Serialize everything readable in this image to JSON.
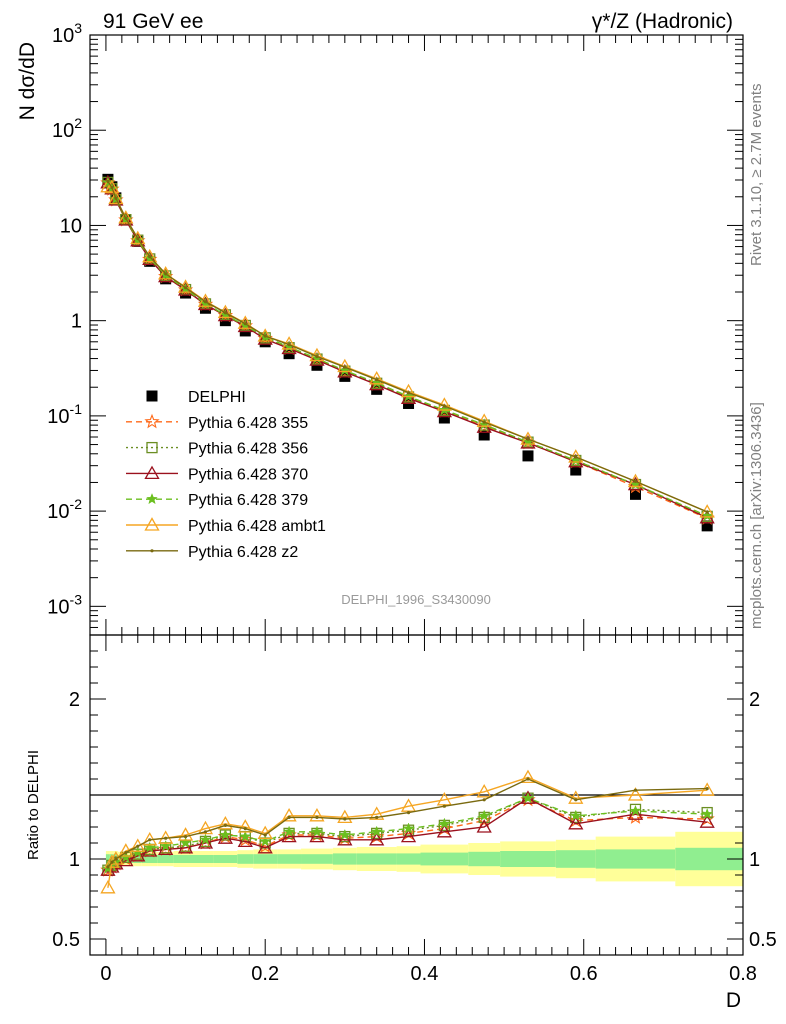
{
  "header": {
    "left": "91 GeV ee",
    "right": "γ*/Z (Hadronic)"
  },
  "side_labels": {
    "rivet": "Rivet 3.1.10, ≥ 2.7M events",
    "mcplots": "mcplots.cern.ch [arXiv:1306.3436]"
  },
  "analysis_label": "DELPHI_1996_S3430090",
  "chart_data": [
    {
      "type": "scatter",
      "ylabel": "N dσ/dD",
      "yscale": "log",
      "ylim": [
        0.0005,
        1000
      ],
      "xlim": [
        -0.02,
        0.8
      ],
      "y_tick_labels": [
        "10^3",
        "10^2",
        "10",
        "1",
        "10^-1",
        "10^-2",
        "10^-3"
      ],
      "x": [
        0.0025,
        0.0075,
        0.0125,
        0.025,
        0.04,
        0.055,
        0.075,
        0.1,
        0.125,
        0.15,
        0.175,
        0.2,
        0.23,
        0.265,
        0.3,
        0.34,
        0.38,
        0.425,
        0.475,
        0.53,
        0.59,
        0.665,
        0.755
      ],
      "series": [
        {
          "name": "DELPHI",
          "color": "#000000",
          "marker": "square",
          "values": [
            30.5,
            25.5,
            19.5,
            11.5,
            6.8,
            4.2,
            2.75,
            1.95,
            1.35,
            1.0,
            0.78,
            0.6,
            0.45,
            0.34,
            0.26,
            0.19,
            0.135,
            0.095,
            0.063,
            0.038,
            0.027,
            0.015,
            0.007
          ]
        },
        {
          "name": "Pythia 6.428 355",
          "color": "#ff6a1a",
          "marker": "star-open",
          "line": "dashed",
          "values": [
            28.0,
            24.0,
            18.5,
            11.4,
            6.9,
            4.4,
            2.9,
            2.1,
            1.48,
            1.13,
            0.88,
            0.65,
            0.51,
            0.39,
            0.29,
            0.215,
            0.155,
            0.112,
            0.078,
            0.052,
            0.033,
            0.018,
            0.0084
          ]
        },
        {
          "name": "Pythia 6.428 356",
          "color": "#6b8e23",
          "marker": "square-open",
          "line": "dotted",
          "values": [
            28.3,
            24.3,
            18.7,
            11.5,
            7.0,
            4.45,
            2.95,
            2.12,
            1.5,
            1.15,
            0.89,
            0.66,
            0.52,
            0.395,
            0.295,
            0.22,
            0.158,
            0.114,
            0.08,
            0.053,
            0.034,
            0.019,
            0.0088
          ]
        },
        {
          "name": "Pythia 6.428 370",
          "color": "#9b111e",
          "marker": "triangle-open",
          "line": "solid",
          "values": [
            28.0,
            24.2,
            18.5,
            11.4,
            6.9,
            4.4,
            2.9,
            2.1,
            1.48,
            1.13,
            0.87,
            0.64,
            0.51,
            0.385,
            0.29,
            0.213,
            0.153,
            0.111,
            0.076,
            0.052,
            0.033,
            0.019,
            0.0085
          ]
        },
        {
          "name": "Pythia 6.428 379",
          "color": "#6bbf1f",
          "marker": "star",
          "line": "dashed",
          "values": [
            28.2,
            24.3,
            18.8,
            11.6,
            7.0,
            4.5,
            3.0,
            2.15,
            1.5,
            1.15,
            0.89,
            0.67,
            0.53,
            0.4,
            0.3,
            0.222,
            0.16,
            0.115,
            0.081,
            0.053,
            0.034,
            0.019,
            0.0089
          ]
        },
        {
          "name": "Pythia 6.428 ambt1",
          "color": "#f5a623",
          "marker": "triangle-open",
          "line": "solid",
          "values": [
            25.5,
            25.0,
            19.2,
            12.0,
            7.3,
            4.7,
            3.1,
            2.25,
            1.6,
            1.22,
            0.94,
            0.69,
            0.57,
            0.43,
            0.33,
            0.245,
            0.18,
            0.13,
            0.088,
            0.057,
            0.037,
            0.0205,
            0.0098
          ]
        },
        {
          "name": "Pythia 6.428 z2",
          "color": "#7a6a10",
          "marker": "dot",
          "line": "solid",
          "values": [
            29.0,
            25.0,
            19.3,
            11.9,
            7.3,
            4.7,
            3.1,
            2.22,
            1.58,
            1.21,
            0.93,
            0.69,
            0.56,
            0.42,
            0.325,
            0.24,
            0.175,
            0.127,
            0.086,
            0.057,
            0.037,
            0.0205,
            0.0098
          ]
        }
      ]
    },
    {
      "type": "line",
      "ylabel": "Ratio to DELPHI",
      "xlabel": "D",
      "ylim": [
        0.4,
        2.4
      ],
      "xlim": [
        -0.02,
        0.8
      ],
      "x_ticks": [
        0,
        0.2,
        0.4,
        0.6,
        0.8
      ],
      "y_ticks": [
        0.5,
        1,
        2
      ],
      "x": [
        0.0025,
        0.0075,
        0.0125,
        0.025,
        0.04,
        0.055,
        0.075,
        0.1,
        0.125,
        0.15,
        0.175,
        0.2,
        0.23,
        0.265,
        0.3,
        0.34,
        0.38,
        0.425,
        0.475,
        0.53,
        0.59,
        0.665,
        0.755
      ],
      "uncertainty_bands": {
        "bin_edges": [
          0,
          0.005,
          0.01,
          0.015,
          0.035,
          0.045,
          0.065,
          0.085,
          0.115,
          0.135,
          0.165,
          0.185,
          0.215,
          0.245,
          0.285,
          0.315,
          0.365,
          0.395,
          0.455,
          0.495,
          0.565,
          0.615,
          0.715,
          0.8
        ],
        "inner_halfwidth": [
          0.03,
          0.03,
          0.03,
          0.025,
          0.025,
          0.025,
          0.025,
          0.025,
          0.025,
          0.025,
          0.03,
          0.03,
          0.03,
          0.03,
          0.035,
          0.035,
          0.035,
          0.04,
          0.045,
          0.05,
          0.055,
          0.06,
          0.07
        ],
        "outer_halfwidth": [
          0.05,
          0.05,
          0.05,
          0.045,
          0.045,
          0.045,
          0.045,
          0.05,
          0.05,
          0.05,
          0.055,
          0.06,
          0.06,
          0.065,
          0.07,
          0.075,
          0.08,
          0.09,
          0.1,
          0.11,
          0.12,
          0.14,
          0.17
        ],
        "inner_color": "#90ee90",
        "outer_color": "#ffff99"
      },
      "series": [
        {
          "name": "Pythia 6.428 355",
          "color": "#ff6a1a",
          "marker": "star-open",
          "line": "dashed",
          "values": [
            0.93,
            0.95,
            0.97,
            1.0,
            1.02,
            1.05,
            1.06,
            1.07,
            1.1,
            1.14,
            1.12,
            1.08,
            1.15,
            1.15,
            1.13,
            1.14,
            1.16,
            1.19,
            1.24,
            1.37,
            1.24,
            1.26,
            1.25
          ]
        },
        {
          "name": "Pythia 6.428 356",
          "color": "#6b8e23",
          "marker": "square-open",
          "line": "dotted",
          "values": [
            0.93,
            0.96,
            0.98,
            1.01,
            1.03,
            1.06,
            1.07,
            1.08,
            1.11,
            1.15,
            1.14,
            1.1,
            1.16,
            1.16,
            1.14,
            1.16,
            1.18,
            1.21,
            1.26,
            1.38,
            1.26,
            1.31,
            1.29
          ]
        },
        {
          "name": "Pythia 6.428 370",
          "color": "#9b111e",
          "marker": "triangle-open",
          "line": "solid",
          "values": [
            0.93,
            0.95,
            0.97,
            0.99,
            1.02,
            1.05,
            1.06,
            1.07,
            1.1,
            1.13,
            1.11,
            1.07,
            1.14,
            1.14,
            1.12,
            1.12,
            1.14,
            1.17,
            1.2,
            1.38,
            1.22,
            1.28,
            1.23
          ]
        },
        {
          "name": "Pythia 6.428 379",
          "color": "#6bbf1f",
          "marker": "star",
          "line": "dashed",
          "values": [
            0.94,
            0.96,
            0.98,
            1.01,
            1.04,
            1.07,
            1.08,
            1.1,
            1.12,
            1.15,
            1.14,
            1.11,
            1.17,
            1.17,
            1.15,
            1.17,
            1.19,
            1.22,
            1.27,
            1.38,
            1.27,
            1.3,
            1.28
          ]
        },
        {
          "name": "Pythia 6.428 ambt1",
          "color": "#f5a623",
          "marker": "triangle-open",
          "line": "solid",
          "values": [
            0.82,
            0.98,
            1.0,
            1.05,
            1.08,
            1.12,
            1.13,
            1.15,
            1.19,
            1.22,
            1.2,
            1.16,
            1.27,
            1.27,
            1.26,
            1.28,
            1.33,
            1.37,
            1.42,
            1.51,
            1.38,
            1.4,
            1.43
          ]
        },
        {
          "name": "Pythia 6.428 z2",
          "color": "#7a6a10",
          "marker": "dot",
          "line": "solid",
          "values": [
            0.95,
            0.98,
            1.0,
            1.04,
            1.08,
            1.12,
            1.13,
            1.14,
            1.17,
            1.21,
            1.19,
            1.15,
            1.26,
            1.26,
            1.25,
            1.26,
            1.29,
            1.33,
            1.37,
            1.5,
            1.37,
            1.43,
            1.44
          ]
        }
      ]
    }
  ]
}
